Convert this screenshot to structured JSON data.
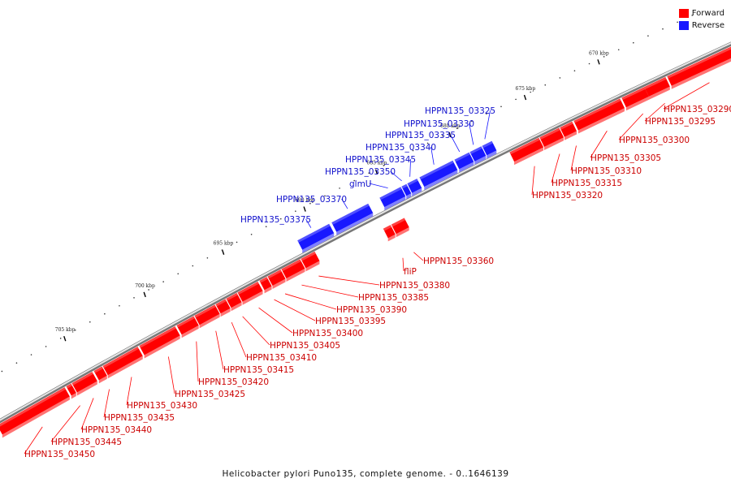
{
  "legend": {
    "forward_label": "Forward",
    "reverse_label": "Reverse",
    "forward_color": "#ff0000",
    "reverse_color": "#1818ff"
  },
  "caption": "Helicobacter pylori Puno135, complete genome. - 0..1646139",
  "scale_ticks": [
    "670 kbp",
    "675 kbp",
    "680 kbp",
    "685 kbp",
    "690 kbp",
    "695 kbp",
    "700 kbp",
    "705 kbp"
  ],
  "genes": [
    {
      "id": "HPPN135_03290",
      "strand": "forward"
    },
    {
      "id": "HPPN135_03295",
      "strand": "forward"
    },
    {
      "id": "HPPN135_03300",
      "strand": "forward"
    },
    {
      "id": "HPPN135_03305",
      "strand": "forward"
    },
    {
      "id": "HPPN135_03310",
      "strand": "forward"
    },
    {
      "id": "HPPN135_03315",
      "strand": "forward"
    },
    {
      "id": "HPPN135_03320",
      "strand": "forward"
    },
    {
      "id": "HPPN135_03325",
      "strand": "reverse"
    },
    {
      "id": "HPPN135_03330",
      "strand": "reverse"
    },
    {
      "id": "HPPN135_03335",
      "strand": "reverse"
    },
    {
      "id": "HPPN135_03340",
      "strand": "reverse"
    },
    {
      "id": "HPPN135_03345",
      "strand": "reverse"
    },
    {
      "id": "HPPN135_03350",
      "strand": "reverse"
    },
    {
      "id": "glmU",
      "strand": "reverse"
    },
    {
      "id": "HPPN135_03360",
      "strand": "forward"
    },
    {
      "id": "fliP",
      "strand": "forward"
    },
    {
      "id": "HPPN135_03370",
      "strand": "reverse"
    },
    {
      "id": "HPPN135_03375",
      "strand": "reverse"
    },
    {
      "id": "HPPN135_03380",
      "strand": "forward"
    },
    {
      "id": "HPPN135_03385",
      "strand": "forward"
    },
    {
      "id": "HPPN135_03390",
      "strand": "forward"
    },
    {
      "id": "HPPN135_03395",
      "strand": "forward"
    },
    {
      "id": "HPPN135_03400",
      "strand": "forward"
    },
    {
      "id": "HPPN135_03405",
      "strand": "forward"
    },
    {
      "id": "HPPN135_03410",
      "strand": "forward"
    },
    {
      "id": "HPPN135_03415",
      "strand": "forward"
    },
    {
      "id": "HPPN135_03420",
      "strand": "forward"
    },
    {
      "id": "HPPN135_03425",
      "strand": "forward"
    },
    {
      "id": "HPPN135_03430",
      "strand": "forward"
    },
    {
      "id": "HPPN135_03435",
      "strand": "forward"
    },
    {
      "id": "HPPN135_03440",
      "strand": "forward"
    },
    {
      "id": "HPPN135_03445",
      "strand": "forward"
    },
    {
      "id": "HPPN135_03450",
      "strand": "forward"
    }
  ]
}
